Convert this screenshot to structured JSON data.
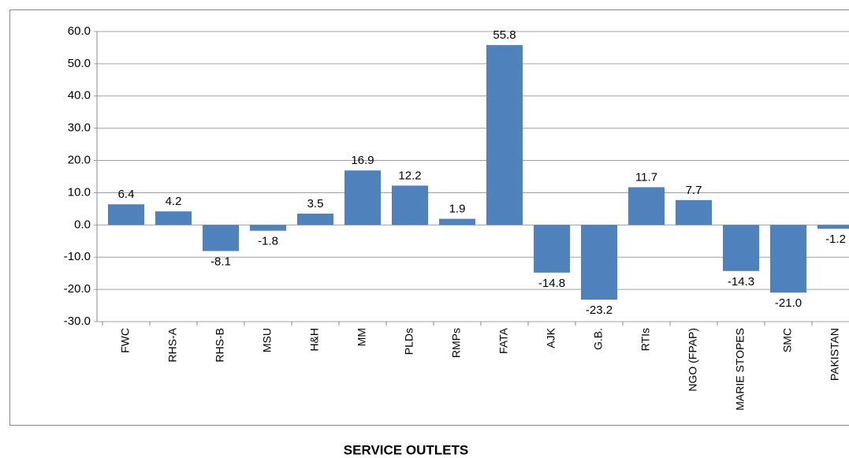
{
  "chart_data": {
    "type": "bar",
    "x_label": "SERVICE OUTLETS",
    "categories": [
      "FWC",
      "RHS-A",
      "RHS-B",
      "MSU",
      "H&H",
      "MM",
      "PLDs",
      "RMPs",
      "FATA",
      "AJK",
      "G.B.",
      "RTIs",
      "NGO (FPAP)",
      "MARIE STOPES",
      "SMC",
      "PAKISTAN"
    ],
    "values": [
      6.4,
      4.2,
      -8.1,
      -1.8,
      3.5,
      16.9,
      12.2,
      1.9,
      55.8,
      -14.8,
      -23.2,
      11.7,
      7.7,
      -14.3,
      -21.0,
      -1.2
    ],
    "value_labels": [
      "6.4",
      "4.2",
      "-8.1",
      "-1.8",
      "3.5",
      "16.9",
      "12.2",
      "1.9",
      "55.8",
      "-14.8",
      "-23.2",
      "11.7",
      "7.7",
      "-14.3",
      "-21.0",
      "-1.2"
    ],
    "color": "#4f81bd",
    "ylim": [
      -30,
      60
    ],
    "yticks": [
      {
        "value": -30,
        "label": "-30.0"
      },
      {
        "value": -20,
        "label": "-20.0"
      },
      {
        "value": -10,
        "label": "-10.0"
      },
      {
        "value": 0,
        "label": "0.0"
      },
      {
        "value": 10,
        "label": "10.0"
      },
      {
        "value": 20,
        "label": "20.0"
      },
      {
        "value": 30,
        "label": "30.0"
      },
      {
        "value": 40,
        "label": "40.0"
      },
      {
        "value": 50,
        "label": "50.0"
      },
      {
        "value": 60,
        "label": "60.0"
      }
    ],
    "grid": true
  }
}
